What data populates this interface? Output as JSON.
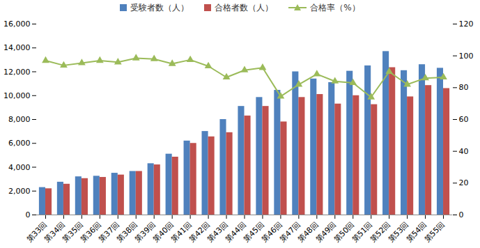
{
  "chart_data": {
    "type": "bar",
    "categories": [
      "第33回",
      "第34回",
      "第35回",
      "第36回",
      "第37回",
      "第38回",
      "第39回",
      "第40回",
      "第41回",
      "第42回",
      "第43回",
      "第44回",
      "第45回",
      "第46回",
      "第47回",
      "第48回",
      "第49回",
      "第50回",
      "第51回",
      "第52回",
      "第53回",
      "第54回",
      "第55回"
    ],
    "series": [
      {
        "name": "受験者数（人）",
        "type": "bar",
        "color": "#4f81bd",
        "values": [
          2300,
          2750,
          3200,
          3250,
          3500,
          3650,
          4300,
          5100,
          6200,
          7000,
          8000,
          9100,
          9850,
          10450,
          12000,
          11400,
          11100,
          12050,
          12500,
          13700,
          12100,
          12600,
          12300
        ]
      },
      {
        "name": "合格者数（人）",
        "type": "bar",
        "color": "#c0504d",
        "values": [
          2200,
          2580,
          3050,
          3150,
          3350,
          3650,
          4200,
          4850,
          6000,
          6550,
          6900,
          8300,
          9100,
          7800,
          9850,
          10100,
          9300,
          10000,
          9250,
          12350,
          9900,
          10850,
          10600
        ]
      },
      {
        "name": "合格率（%）",
        "type": "line",
        "axis": "y2",
        "color": "#9bbb59",
        "marker": "triangle",
        "values": [
          97,
          94,
          95.5,
          97,
          96,
          98.5,
          98,
          95,
          97.5,
          93.5,
          86.5,
          91,
          92.5,
          74.5,
          82,
          88.5,
          84,
          83,
          74,
          90,
          82,
          86,
          86.5
        ]
      }
    ],
    "ylim": [
      0,
      16000
    ],
    "yticks": [
      0,
      {
        "value": 2000,
        "label": "2,000"
      },
      {
        "value": 4000,
        "label": "4,000"
      },
      {
        "value": 6000,
        "label": "6,000"
      },
      {
        "value": 8000,
        "label": "8,000"
      },
      {
        "value": 10000,
        "label": "10,000"
      },
      {
        "value": 12000,
        "label": "12,000"
      },
      {
        "value": 14000,
        "label": "14,000"
      },
      {
        "value": 16000,
        "label": "16,000"
      }
    ],
    "y2lim": [
      0,
      120
    ],
    "y2ticks": [
      0,
      20,
      40,
      60,
      80,
      100,
      120
    ],
    "grid": false,
    "legend": "top"
  }
}
